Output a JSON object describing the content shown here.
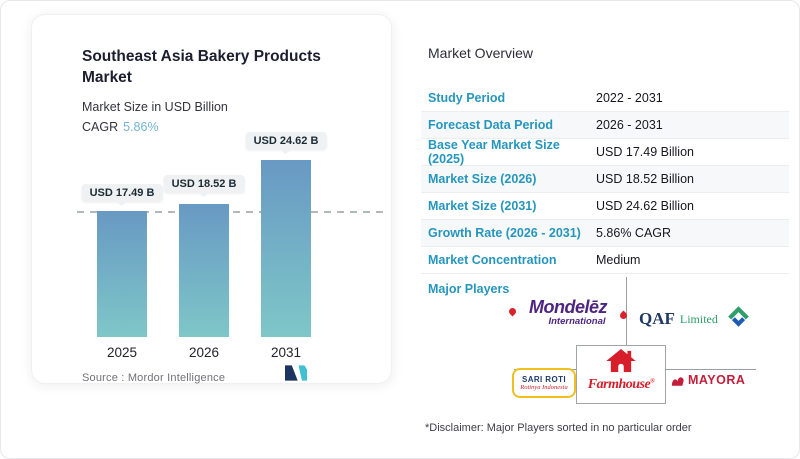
{
  "chart_card": {
    "title": "Southeast Asia Bakery Products Market",
    "subtitle": "Market Size in USD Billion",
    "cagr_label": "CAGR",
    "cagr_value": "5.86%",
    "source": "Source :  Mordor Intelligence"
  },
  "chart_data": {
    "type": "bar",
    "title": "Southeast Asia Bakery Products Market",
    "ylabel": "Market Size in USD Billion",
    "categories": [
      "2025",
      "2026",
      "2031"
    ],
    "values": [
      17.49,
      18.52,
      24.62
    ],
    "bar_labels": [
      "USD 17.49 B",
      "USD 18.52 B",
      "USD 24.62 B"
    ],
    "cagr": "5.86%",
    "ylim": [
      0,
      28
    ],
    "reference_line_value": 17.49,
    "grid": "off",
    "legend": "none",
    "bar_gradient_top": "#6899c3",
    "bar_gradient_bottom": "#7ec7c8"
  },
  "overview": {
    "title": "Market Overview",
    "rows": [
      {
        "label": "Study Period",
        "value": "2022 - 2031"
      },
      {
        "label": "Forecast Data Period",
        "value": "2026 - 2031"
      },
      {
        "label": "Base Year Market Size (2025)",
        "value": "USD 17.49 Billion"
      },
      {
        "label": "Market Size (2026)",
        "value": "USD 18.52 Billion"
      },
      {
        "label": "Market Size (2031)",
        "value": "USD 24.62 Billion"
      },
      {
        "label": "Growth Rate (2026 - 2031)",
        "value": "5.86% CAGR"
      },
      {
        "label": "Market Concentration",
        "value": "Medium"
      }
    ],
    "major_players_label": "Major Players",
    "disclaimer": "*Disclaimer: Major Players sorted in no particular order"
  },
  "players": {
    "mondelez": {
      "name": "Mondelēz",
      "sub": "International"
    },
    "qaf": {
      "name": "QAF",
      "sub": "Limited"
    },
    "farmhouse": {
      "name": "Farmhouse",
      "reg": "®"
    },
    "sari_roti": {
      "name": "SARI ROTI",
      "sub": "Rotinya Indonesia"
    },
    "mayora": {
      "name": "MAYORA"
    }
  },
  "colors": {
    "accent_blue": "#2596be",
    "cagr_blue": "#74b3d6",
    "bar_top": "#6899c3",
    "bar_bottom": "#7ec7c8",
    "mondelez_purple": "#4f2582",
    "qaf_navy": "#1f3864",
    "qaf_green": "#2e9e6b",
    "logo_red": "#d71f2b",
    "sari_roti_yellow": "#f2c01d",
    "mordor_navy": "#1d3461",
    "mordor_teal": "#41c0d2"
  }
}
